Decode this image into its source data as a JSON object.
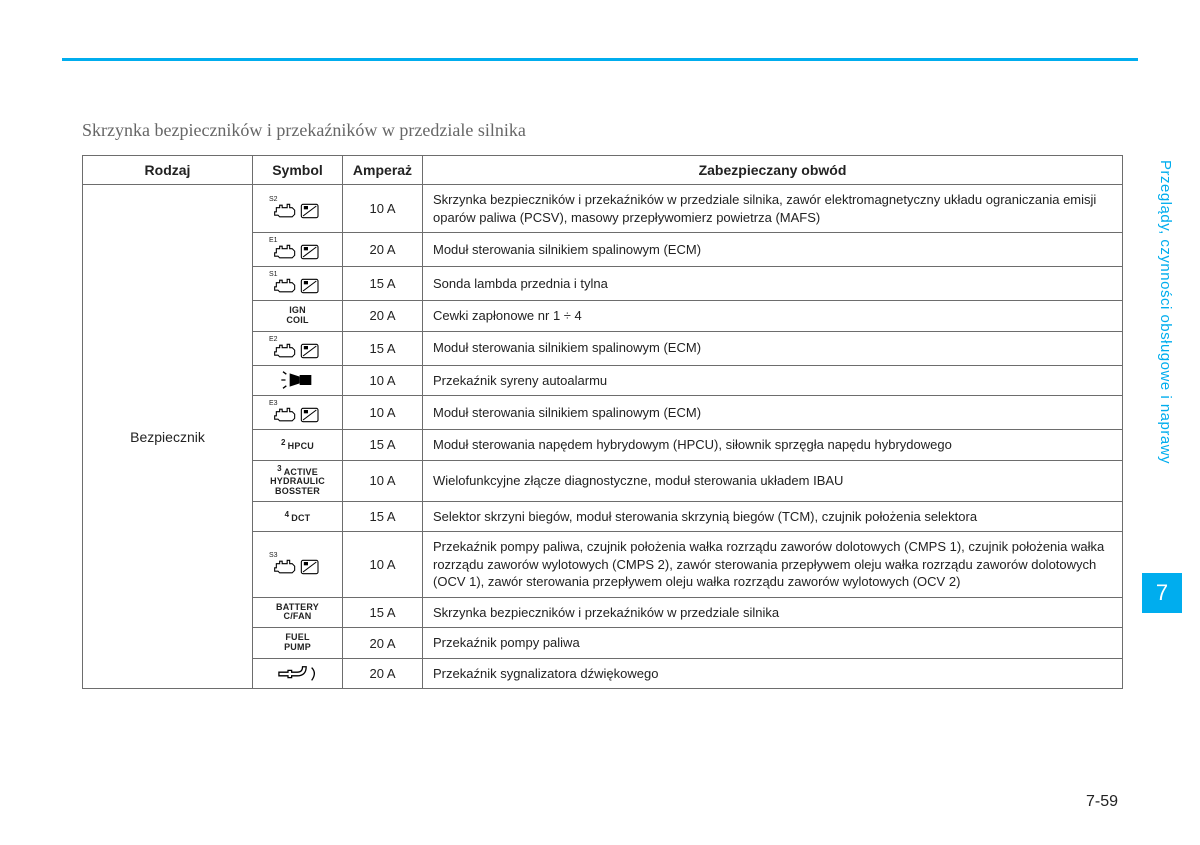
{
  "accent_color": "#00adee",
  "side_text": "Przeglądy, czynności obsługowe i naprawy",
  "side_tab": "7",
  "page_number": "7-59",
  "section_title": "Skrzynka bezpieczników i przekaźników w przedziale silnika",
  "table": {
    "headers": {
      "rodzaj": "Rodzaj",
      "symbol": "Symbol",
      "amper": "Amperaż",
      "desc": "Zabezpieczany obwód"
    },
    "rodzaj_label": "Bezpiecznik",
    "rows": [
      {
        "symbol_type": "engine_ecu",
        "symbol_sup": "S2",
        "amper": "10 A",
        "desc": "Skrzynka bezpieczników i przekaźników w przedziale silnika, zawór elektromagnetyczny układu ograniczania emisji oparów paliwa (PCSV), masowy przepływomierz powietrza (MAFS)"
      },
      {
        "symbol_type": "engine_ecu",
        "symbol_sup": "E1",
        "amper": "20 A",
        "desc": "Moduł sterowania silnikiem spalinowym (ECM)"
      },
      {
        "symbol_type": "engine_ecu",
        "symbol_sup": "S1",
        "amper": "15 A",
        "desc": "Sonda lambda przednia i tylna"
      },
      {
        "symbol_type": "text",
        "symbol_text": "IGN\nCOIL",
        "amper": "20 A",
        "desc": "Cewki zapłonowe nr 1 ÷ 4"
      },
      {
        "symbol_type": "engine_ecu",
        "symbol_sup": "E2",
        "amper": "15 A",
        "desc": "Moduł sterowania silnikiem spalinowym (ECM)"
      },
      {
        "symbol_type": "siren",
        "amper": "10 A",
        "desc": "Przekaźnik syreny autoalarmu"
      },
      {
        "symbol_type": "engine_ecu",
        "symbol_sup": "E3",
        "amper": "10 A",
        "desc": "Moduł sterowania silnikiem spalinowym (ECM)"
      },
      {
        "symbol_type": "text_sup",
        "symbol_sup": "2",
        "symbol_text": "HPCU",
        "amper": "15 A",
        "desc": "Moduł sterowania napędem hybrydowym (HPCU), siłownik sprzęgła napędu hybrydowego"
      },
      {
        "symbol_type": "text_sup",
        "symbol_sup": "3",
        "symbol_text": "ACTIVE\nHYDRAULIC\nBOSSTER",
        "amper": "10 A",
        "desc": "Wielofunkcyjne złącze diagnostyczne, moduł sterowania układem IBAU"
      },
      {
        "symbol_type": "text_sup",
        "symbol_sup": "4",
        "symbol_text": "DCT",
        "amper": "15 A",
        "desc": "Selektor skrzyni biegów, moduł sterowania skrzynią biegów (TCM), czujnik położenia selektora"
      },
      {
        "symbol_type": "engine_ecu",
        "symbol_sup": "S3",
        "amper": "10 A",
        "desc": "Przekaźnik pompy paliwa, czujnik położenia wałka rozrządu zaworów dolotowych (CMPS 1), czujnik położenia wałka rozrządu zaworów wylotowych (CMPS 2), zawór sterowania przepływem oleju wałka rozrządu zaworów dolotowych (OCV 1), zawór sterowania przepływem oleju wałka rozrządu zaworów wylotowych (OCV 2)"
      },
      {
        "symbol_type": "text",
        "symbol_text": "BATTERY\nC/FAN",
        "amper": "15 A",
        "desc": "Skrzynka bezpieczników i przekaźników w przedziale silnika"
      },
      {
        "symbol_type": "text",
        "symbol_text": "FUEL\nPUMP",
        "amper": "20 A",
        "desc": "Przekaźnik pompy paliwa"
      },
      {
        "symbol_type": "horn",
        "amper": "20 A",
        "desc": "Przekaźnik sygnalizatora dźwiękowego"
      }
    ]
  }
}
